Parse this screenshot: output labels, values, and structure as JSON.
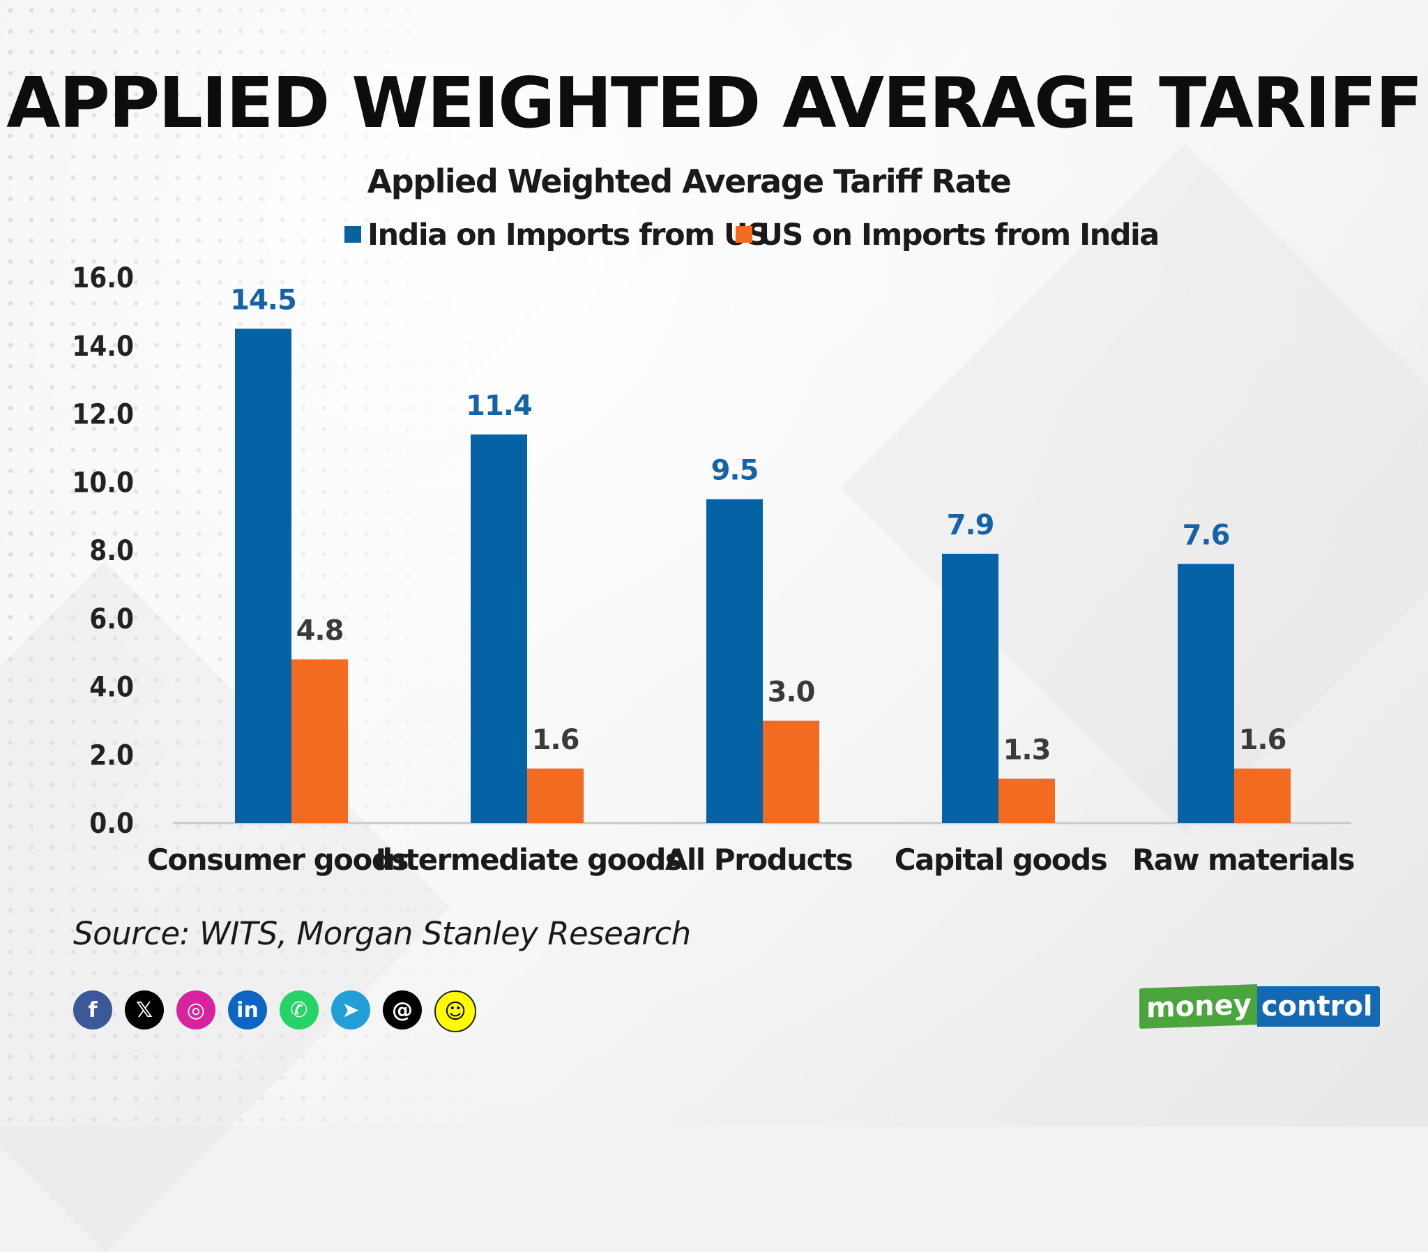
{
  "header": {
    "title": "APPLIED WEIGHTED AVERAGE TARIFF"
  },
  "colors": {
    "blue": "#0562a4",
    "orange": "#f26b21"
  },
  "chart_data": {
    "type": "bar",
    "title": "Applied Weighted Average Tariff Rate",
    "categories": [
      "Consumer goods",
      "Intermediate goods",
      "All Products",
      "Capital goods",
      "Raw materials"
    ],
    "series": [
      {
        "name": "India on Imports from US",
        "values": [
          14.5,
          11.4,
          9.5,
          7.9,
          7.6
        ]
      },
      {
        "name": "US on Imports from India",
        "values": [
          4.8,
          1.6,
          3.0,
          1.3,
          1.6
        ]
      }
    ],
    "y_ticks": [
      "0.0",
      "2.0",
      "4.0",
      "6.0",
      "8.0",
      "10.0",
      "12.0",
      "14.0",
      "16.0"
    ],
    "ylim": [
      0,
      16
    ],
    "xlabel": "",
    "ylabel": "",
    "legend_position": "top-center",
    "grid": false
  },
  "footer": {
    "source": "Source: WITS, Morgan Stanley Research",
    "social_icons": [
      "facebook-icon",
      "x-icon",
      "instagram-icon",
      "linkedin-icon",
      "whatsapp-icon",
      "telegram-icon",
      "threads-icon",
      "snapchat-icon"
    ],
    "social_glyphs": [
      "f",
      "𝕏",
      "◎",
      "in",
      "✆",
      "➤",
      "@",
      "☺"
    ],
    "logo": {
      "part1": "money",
      "part2": "control"
    }
  }
}
